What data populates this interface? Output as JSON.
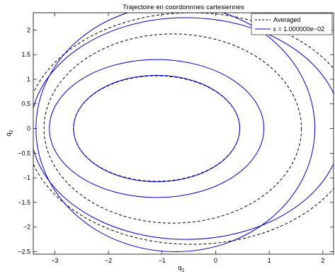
{
  "chart_data": {
    "type": "line",
    "title": "Trajectoire en coordonnnes cartesiennes",
    "xlabel": "q",
    "xlabel_sub": "1",
    "ylabel": "q",
    "ylabel_sub": "2",
    "xlim": [
      -3.4,
      2.2
    ],
    "ylim": [
      -2.55,
      2.35
    ],
    "xticks": [
      -3,
      -2,
      -1,
      0,
      1,
      2
    ],
    "yticks": [
      -2.5,
      -2,
      -1.5,
      -1,
      -0.5,
      0,
      0.5,
      1,
      1.5,
      2
    ],
    "tick_labels": {
      "x": [
        "−3",
        "−2",
        "−1",
        "0",
        "1",
        "2"
      ],
      "y": [
        "−2.5",
        "−2",
        "−1.5",
        "−1",
        "−0.5",
        "0",
        "0.5",
        "1",
        "1.5",
        "2"
      ]
    },
    "grid": false,
    "legend_position": "top-right",
    "series": [
      {
        "name": "Averaged",
        "style": "dashed",
        "color": "#000000",
        "ellipses": [
          {
            "cx": -1.1,
            "cy": 0.0,
            "rx": 1.55,
            "ry": 1.07
          },
          {
            "cx": -0.8,
            "cy": 0.0,
            "rx": 2.4,
            "ry": 1.92
          },
          {
            "cx": -0.45,
            "cy": 0.0,
            "rx": 3.1,
            "ry": 2.35
          }
        ]
      },
      {
        "name": "ε = 1.000000e−02",
        "style": "solid",
        "color": "#0000cc",
        "ellipses": [
          {
            "cx": -1.1,
            "cy": 0.0,
            "rx": 1.55,
            "ry": 1.08
          },
          {
            "cx": -1.1,
            "cy": 0.0,
            "rx": 2.0,
            "ry": 1.4
          },
          {
            "cx": -0.55,
            "cy": 0.0,
            "rx": 2.9,
            "ry": 2.25
          },
          {
            "cx": -0.75,
            "cy": 0.0,
            "rx": 2.6,
            "ry": 2.5
          }
        ]
      }
    ]
  }
}
